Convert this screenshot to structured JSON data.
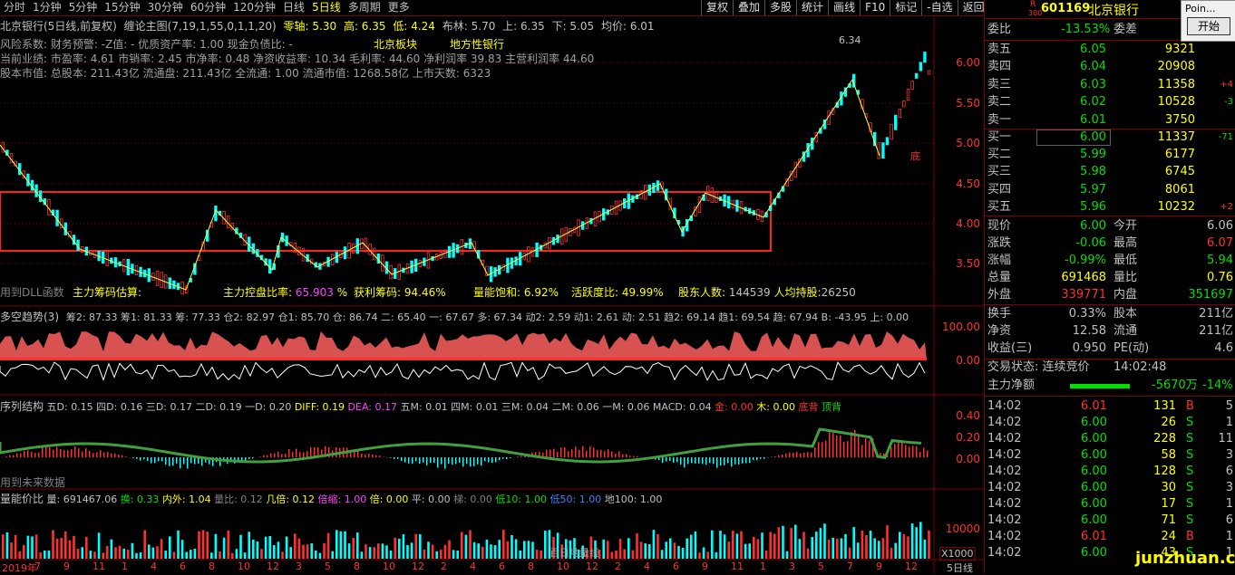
{
  "toolbar": {
    "items": [
      "分时",
      "1分钟",
      "5分钟",
      "15分钟",
      "30分钟",
      "60分钟",
      "120分钟",
      "日线",
      "5日线",
      "多周期",
      "更多"
    ],
    "active_index": 8,
    "right_items": [
      "复权",
      "叠加",
      "多股",
      "统计",
      "画线",
      "F10",
      "标记",
      "-自选",
      "返回"
    ]
  },
  "main": {
    "title": "北京银行(5日线,前复权)",
    "indicator": "缠论主图(7,19,1,55,0,1,1,20)",
    "lingzhou": "零轴: 5.30",
    "gao": "高: 6.35",
    "di": "低: 4.24",
    "bulin": "布林: 5.70",
    "shang": "上: 6.35",
    "xia": "下: 5.05",
    "junjia": "均价: 6.01",
    "line1": "风险系数: 财务预警: -Z值: - 优质资产率: 1.00 现金负债比: -",
    "line2": "当前业绩: 市盈率: 4.61 市销率: 2.45 市净率: 0.48 净资收益率: 10.34 毛利率: 44.60 净利润率 39.83 主营利润率 44.60",
    "line3": "股本市值: 总股本: 211.43亿 流通盘: 211.43亿 全流通: 1.00 流通市值: 1268.58亿 上市天数: 6323",
    "tag1": "北京板块",
    "tag2": "地方性银行",
    "high_mark": "6.34",
    "di_label": "底",
    "bottom_bar": "主力筹码估算:",
    "b1": "主力控盘比率:",
    "b1v": "65.903",
    "b2": "获利筹码:",
    "b2v": "94.46%",
    "b3": "量能饱和:",
    "b3v": "6.92%",
    "b4": "活跃度比:",
    "b4v": "49.99%",
    "b5": "股东人数:",
    "b5v": "144539",
    "b6": "人均持股:",
    "b6v": "26250",
    "dll": "用到DLL函数",
    "y_labels": [
      "6.00",
      "5.50",
      "5.00",
      "4.50",
      "4.00",
      "3.50"
    ]
  },
  "panel2": {
    "title": "多空趋势(3)",
    "vals": "筹2: 87.33  筹1: 81.33  筹: 77.33  仓2: 82.97  仓1: 85.70  仓: 86.74  二: 65.40  一: 67.67  多: 67.34  动2: 2.59  动1: 2.61  动: 2.51  趋2: 69.14  趋1: 69.54  趋: 67.94  B: -43.95  上: 0.00",
    "y_labels": [
      "100.00",
      "0.00"
    ]
  },
  "panel3": {
    "title": "序列结构",
    "vals": "五D: 0.15  四D: 0.16  三D: 0.17  二D: 0.19  一D: 0.20",
    "diff": "DIFF: 0.19",
    "dea": "DEA: 0.17",
    "more": "五M: 0.01  四M: 0.01  三M: 0.04  二M: 0.06  一M: 0.06  MACD: 0.04",
    "jin": "金: 0.00",
    "mu": "木: 0.00",
    "dibei": "底背",
    "dingbei": "顶背",
    "future": "用到未来数据",
    "y_labels": [
      "0.40",
      "0.20",
      "0.00"
    ]
  },
  "panel4": {
    "title": "量能价比",
    "liang": "量: 691467.06",
    "huan": "换: 0.33",
    "neiwai": "内外: 1.04",
    "liangbi": "量比: 0.12",
    "jibei": "几倍: 0.12",
    "beisuo": "倍缩: 1.00",
    "bei": "倍: 0.00",
    "ping": "平: 0.00",
    "ti": "梯: 0.00",
    "di10": "低10: 1.00",
    "di50": "低50: 1.00",
    "di100": "地100: 1.00",
    "y_labels": [
      "10000"
    ],
    "mult": "X1000",
    "watermark": "百日地量线"
  },
  "xaxis": {
    "labels": [
      "2019年",
      "7",
      "9",
      "11",
      "1",
      "4",
      "6",
      "8",
      "10",
      "12",
      "3",
      "5",
      "8",
      "10",
      "12",
      "2",
      "4",
      "6",
      "8",
      "10",
      "12",
      "2",
      "4",
      "6",
      "9",
      "11",
      "1",
      "3",
      "5",
      "7",
      "9",
      "12"
    ],
    "period": "5日线"
  },
  "quote": {
    "r_label": "R",
    "code": "601169",
    "num": "300",
    "name": "北京银行",
    "weibi_label": "委比",
    "weibi": "-13.53%",
    "weicha_label": "委差",
    "sells": [
      {
        "label": "卖五",
        "price": "6.05",
        "vol": "9321",
        "chg": ""
      },
      {
        "label": "卖四",
        "price": "6.04",
        "vol": "20908",
        "chg": ""
      },
      {
        "label": "卖三",
        "price": "6.03",
        "vol": "11358",
        "chg": "+4"
      },
      {
        "label": "卖二",
        "price": "6.02",
        "vol": "10528",
        "chg": "-3"
      },
      {
        "label": "卖一",
        "price": "6.01",
        "vol": "3750",
        "chg": ""
      }
    ],
    "buys": [
      {
        "label": "买一",
        "price": "6.00",
        "vol": "11337",
        "chg": "-71"
      },
      {
        "label": "买二",
        "price": "5.99",
        "vol": "6177",
        "chg": ""
      },
      {
        "label": "买三",
        "price": "5.98",
        "vol": "6745",
        "chg": ""
      },
      {
        "label": "买四",
        "price": "5.97",
        "vol": "8061",
        "chg": ""
      },
      {
        "label": "买五",
        "price": "5.96",
        "vol": "10232",
        "chg": "+2"
      }
    ],
    "stats": [
      {
        "l1": "现价",
        "v1": "6.00",
        "l2": "今开",
        "v2": "6.06"
      },
      {
        "l1": "涨跌",
        "v1": "-0.06",
        "l2": "最高",
        "v2": "6.07"
      },
      {
        "l1": "涨幅",
        "v1": "-0.99%",
        "l2": "最低",
        "v2": "5.94"
      },
      {
        "l1": "总量",
        "v1": "691468",
        "l2": "量比",
        "v2": "0.76"
      },
      {
        "l1": "外盘",
        "v1": "339771",
        "l2": "内盘",
        "v2": "351697"
      }
    ],
    "stats2": [
      {
        "l1": "换手",
        "v1": "0.33%",
        "l2": "股本",
        "v2": "211亿"
      },
      {
        "l1": "净资",
        "v1": "12.58",
        "l2": "流通",
        "v2": "211亿"
      },
      {
        "l1": "收益(三)",
        "v1": "0.950",
        "l2": "PE(动)",
        "v2": "4.6"
      }
    ],
    "trade_state": "交易状态: 连续竞价",
    "trade_time": "14:02:48",
    "zhuli_label": "主力净额",
    "zhuli_val": "-5670万",
    "zhuli_pct": "-14%",
    "ticks": [
      {
        "t": "14:02",
        "p": "6.01",
        "v": "131",
        "d": "B",
        "n": "5"
      },
      {
        "t": "14:02",
        "p": "6.00",
        "v": "26",
        "d": "S",
        "n": "1"
      },
      {
        "t": "14:02",
        "p": "6.00",
        "v": "228",
        "d": "S",
        "n": "11"
      },
      {
        "t": "14:02",
        "p": "6.00",
        "v": "58",
        "d": "S",
        "n": "3"
      },
      {
        "t": "14:02",
        "p": "6.00",
        "v": "128",
        "d": "S",
        "n": "6"
      },
      {
        "t": "14:02",
        "p": "6.00",
        "v": "30",
        "d": "S",
        "n": "3"
      },
      {
        "t": "14:02",
        "p": "6.00",
        "v": "17",
        "d": "S",
        "n": "1"
      },
      {
        "t": "14:02",
        "p": "6.00",
        "v": "71",
        "d": "S",
        "n": "6"
      },
      {
        "t": "14:02",
        "p": "6.01",
        "v": "24",
        "d": "B",
        "n": "1"
      },
      {
        "t": "14:02",
        "p": "6.00",
        "v": "43",
        "d": "S",
        "n": "1"
      }
    ]
  },
  "popup": {
    "title": "Poin...",
    "button": "开始"
  },
  "watermark": "junzhuan.com"
}
